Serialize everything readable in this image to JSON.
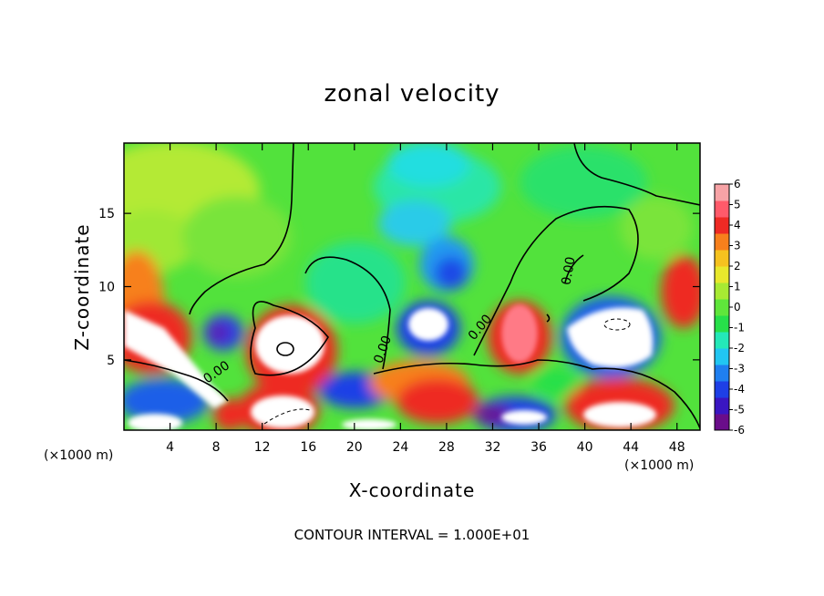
{
  "chart_data": {
    "type": "heatmap",
    "title": "zonal velocity",
    "xlabel": "X-coordinate",
    "ylabel": "Z-coordinate",
    "x_unit_left": "(×1000 m)",
    "x_unit_right": "(×1000 m)",
    "footnote": "CONTOUR INTERVAL = 1.000E+01",
    "xlim": [
      0,
      50
    ],
    "ylim": [
      0.2,
      19.8
    ],
    "xticks": [
      4,
      8,
      12,
      16,
      20,
      24,
      28,
      32,
      36,
      40,
      44,
      48
    ],
    "yticks": [
      5,
      10,
      15
    ],
    "colorbar": {
      "min": -6,
      "max": 6,
      "ticks": [
        6,
        5,
        4,
        3,
        2,
        1,
        0,
        -1,
        -2,
        -3,
        -4,
        -5,
        -6
      ],
      "colors": [
        "#6a0d8a",
        "#3a16c2",
        "#1e3fe6",
        "#1f7ff0",
        "#21c6f2",
        "#24e8b8",
        "#27e04a",
        "#5fe63b",
        "#a8ea33",
        "#e8e82c",
        "#f5c21f",
        "#f7801c",
        "#ee2a24",
        "#ff5a6a",
        "#f7a3a6"
      ]
    },
    "contour_labels": [
      "0.00",
      "0.00",
      "0.00",
      "0.00"
    ]
  }
}
